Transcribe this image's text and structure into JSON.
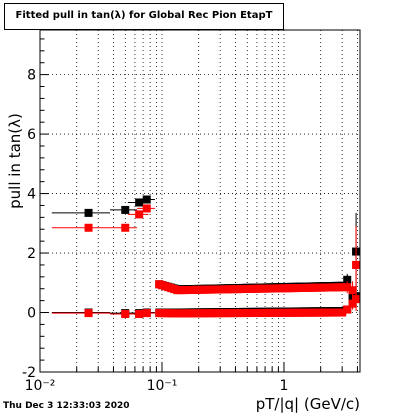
{
  "chart_data": {
    "type": "scatter",
    "title": "Fitted pull in tan(λ) for Global Rec Pion EtapT",
    "xlabel": "pT/|q| (GeV/c)",
    "ylabel": "pull in tan(λ)",
    "xscale": "log",
    "xlim": [
      0.01,
      4.2
    ],
    "ylim": [
      -2,
      9.5
    ],
    "grid": true,
    "x_ticks": [
      {
        "v": 0.01,
        "label": "10⁻²"
      },
      {
        "v": 0.1,
        "label": "10⁻¹"
      },
      {
        "v": 1,
        "label": "1"
      }
    ],
    "y_ticks": [
      -2,
      0,
      2,
      4,
      6,
      8
    ],
    "series": [
      {
        "color": "#000000",
        "groups": [
          {
            "x": [
              0.025,
              0.05,
              0.065,
              0.075
            ],
            "y": [
              3.35,
              3.45,
              3.7,
              3.8
            ],
            "xerr": 0.0125,
            "yerr": 0
          },
          {
            "x": [
              0.025,
              0.05,
              0.065,
              0.075
            ],
            "y": [
              0.0,
              -0.02,
              -0.02,
              0.0
            ],
            "xerr": 0.0125,
            "yerr": 0
          },
          {
            "x_start": 0.095,
            "x_end": 3.0,
            "n": 62,
            "y_start": 0.95,
            "y_mid": 0.78,
            "y_end": 0.9,
            "xerr": 0.02
          },
          {
            "x_start": 0.095,
            "x_end": 3.0,
            "n": 62,
            "y_start": 0.0,
            "y_mid": 0.0,
            "y_end": 0.05,
            "xerr": 0.02
          },
          {
            "x": [
              3.3,
              3.65,
              3.9
            ],
            "y": [
              1.1,
              0.55,
              2.05
            ],
            "xerr": 0.03,
            "yerr": [
              0.2,
              0.3,
              1.3
            ]
          },
          {
            "x": [
              3.3,
              3.65,
              3.9
            ],
            "y": [
              0.1,
              0.3,
              0.55
            ],
            "xerr": 0.03,
            "yerr": [
              0.1,
              0.2,
              0.4
            ]
          }
        ]
      },
      {
        "color": "#ff0000",
        "groups": [
          {
            "x": [
              0.025,
              0.05,
              0.065,
              0.075
            ],
            "y": [
              2.85,
              2.85,
              3.3,
              3.5
            ],
            "xerr": 0.0125,
            "yerr": 0
          },
          {
            "x": [
              0.025,
              0.05,
              0.065,
              0.075
            ],
            "y": [
              -0.02,
              -0.05,
              -0.05,
              -0.02
            ],
            "xerr": 0.0125,
            "yerr": 0
          },
          {
            "x_start": 0.095,
            "x_end": 3.0,
            "n": 62,
            "y_start": 0.95,
            "y_mid": 0.75,
            "y_end": 0.85,
            "xerr": 0.02
          },
          {
            "x_start": 0.095,
            "x_end": 3.0,
            "n": 62,
            "y_start": -0.02,
            "y_mid": -0.03,
            "y_end": 0.0,
            "xerr": 0.02
          },
          {
            "x": [
              3.3,
              3.65,
              3.9
            ],
            "y": [
              0.85,
              0.75,
              1.6
            ],
            "xerr": 0.03,
            "yerr": [
              0.2,
              0.3,
              1.3
            ]
          },
          {
            "x": [
              3.3,
              3.65,
              3.9
            ],
            "y": [
              0.1,
              0.3,
              0.45
            ],
            "xerr": 0.03,
            "yerr": [
              0.1,
              0.2,
              0.4
            ]
          }
        ]
      }
    ]
  },
  "footer": {
    "timestamp": "Thu Dec  3 12:33:03 2020"
  }
}
